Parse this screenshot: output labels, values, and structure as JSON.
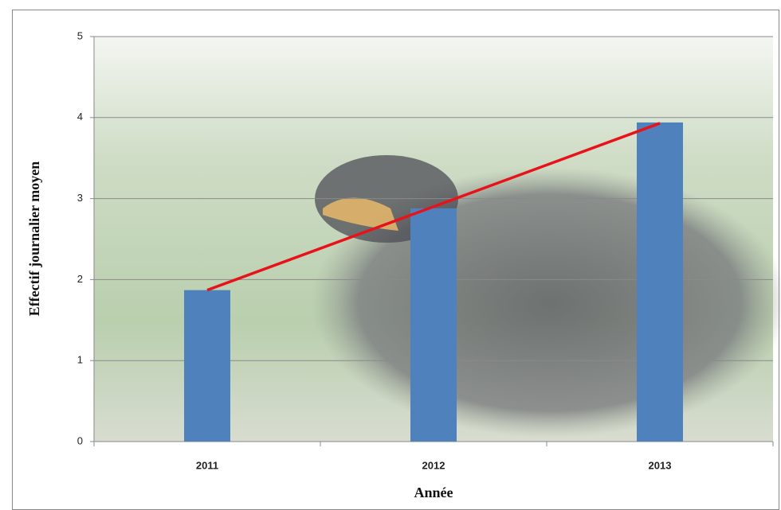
{
  "chart_data": {
    "type": "bar",
    "x_label": "Année",
    "y_label": "Effectif journalier moyen",
    "categories": [
      "2011",
      "2012",
      "2013"
    ],
    "series": [
      {
        "type": "bar",
        "color": "#4f81bd",
        "values": [
          1.87,
          2.88,
          3.94
        ]
      },
      {
        "type": "line",
        "color": "#e8131a",
        "values": [
          1.87,
          2.9,
          3.93
        ]
      }
    ],
    "ylim": [
      0,
      5
    ],
    "yticks": [
      0,
      1,
      2,
      3,
      4,
      5
    ],
    "grid": true
  }
}
